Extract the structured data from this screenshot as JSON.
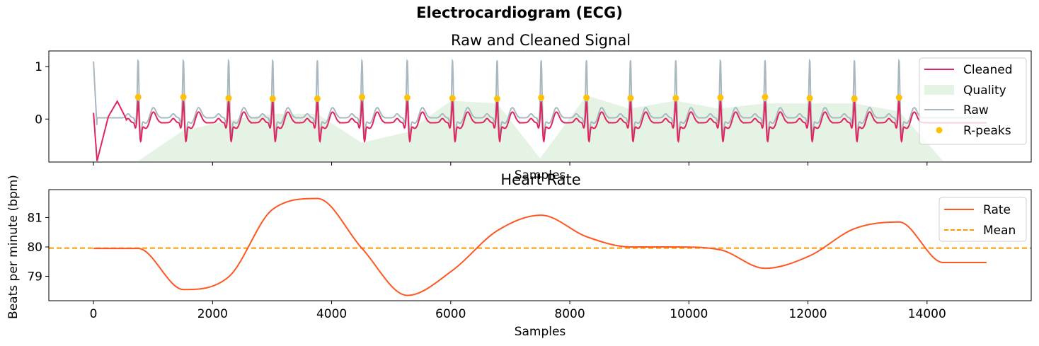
{
  "figure": {
    "suptitle": "Electrocardiogram (ECG)"
  },
  "chart_data": [
    {
      "type": "line",
      "title": "Raw and Cleaned Signal",
      "xlabel": "Samples",
      "ylabel": "",
      "xlim": [
        -750,
        15750
      ],
      "ylim": [
        -0.82,
        1.3
      ],
      "y_ticks": [
        0,
        1
      ],
      "y_tick_labels": [
        "0",
        "1"
      ],
      "x_ticks": [
        0,
        2000,
        4000,
        6000,
        8000,
        10000,
        12000,
        14000
      ],
      "x_tick_labels_shown": false,
      "legend_position": "top-right",
      "legend": [
        "Cleaned",
        "Quality",
        "Raw",
        "R-peaks"
      ],
      "colors": {
        "cleaned": "#e0245e",
        "quality": "#d4ebd4",
        "raw": "#a9b8c0",
        "rpeaks": "#ffc107"
      },
      "r_peaks": {
        "name": "R-peaks",
        "x": [
          750,
          1510,
          2270,
          3010,
          3760,
          4510,
          5270,
          6030,
          6780,
          7520,
          8280,
          9020,
          9780,
          10530,
          11280,
          12030,
          12780,
          13530
        ],
        "y": [
          0.42,
          0.42,
          0.4,
          0.39,
          0.39,
          0.42,
          0.41,
          0.4,
          0.39,
          0.41,
          0.41,
          0.4,
          0.4,
          0.41,
          0.42,
          0.4,
          0.39,
          0.41
        ]
      },
      "quality": {
        "name": "Quality",
        "x": [
          750,
          1500,
          2300,
          3000,
          3760,
          4500,
          5270,
          6000,
          6780,
          7500,
          8280,
          9000,
          9780,
          10500,
          11280,
          12000,
          12780,
          13530,
          14270
        ],
        "y": [
          -0.8,
          -0.22,
          -0.02,
          0.1,
          0.1,
          -0.45,
          -0.25,
          0.35,
          0.3,
          -0.75,
          0.45,
          0.2,
          0.35,
          0.2,
          0.3,
          0.3,
          0.3,
          0.15,
          -0.8
        ],
        "baseline": -0.8
      },
      "cleaned": {
        "name": "Cleaned",
        "r_amplitude": 0.42,
        "start_transient": [
          [
            0,
            0.12
          ],
          [
            60,
            -0.8
          ],
          [
            250,
            0.05
          ],
          [
            400,
            0.34
          ],
          [
            550,
            0.0
          ]
        ]
      },
      "raw": {
        "name": "Raw",
        "r_amplitude": 1.17,
        "start_value": 1.1
      }
    },
    {
      "type": "line",
      "title": "Heart Rate",
      "xlabel": "Samples",
      "ylabel": "Beats per minute (bpm)",
      "xlim": [
        -750,
        15750
      ],
      "ylim": [
        78.17,
        81.95
      ],
      "x_ticks": [
        0,
        2000,
        4000,
        6000,
        8000,
        10000,
        12000,
        14000
      ],
      "x_tick_labels": [
        "0",
        "2000",
        "4000",
        "6000",
        "8000",
        "10000",
        "12000",
        "14000"
      ],
      "y_ticks": [
        79,
        80,
        81
      ],
      "y_tick_labels": [
        "79",
        "80",
        "81"
      ],
      "legend_position": "top-right",
      "legend": [
        "Rate",
        "Mean"
      ],
      "colors": {
        "rate": "#ff5722",
        "mean": "#ff9800"
      },
      "series": [
        {
          "name": "Rate",
          "x": [
            0,
            750,
            1510,
            2270,
            3010,
            3760,
            4510,
            5270,
            6030,
            6780,
            7520,
            8280,
            9020,
            9780,
            10530,
            11280,
            12030,
            12780,
            13530,
            14270,
            15000
          ],
          "y": [
            79.95,
            79.95,
            78.55,
            78.98,
            81.28,
            81.65,
            79.95,
            78.35,
            79.2,
            80.55,
            81.08,
            80.35,
            80.0,
            80.0,
            79.9,
            79.27,
            79.7,
            80.62,
            80.85,
            79.47,
            79.47
          ]
        },
        {
          "name": "Mean",
          "y": 79.96,
          "style": "dashed"
        }
      ]
    }
  ]
}
